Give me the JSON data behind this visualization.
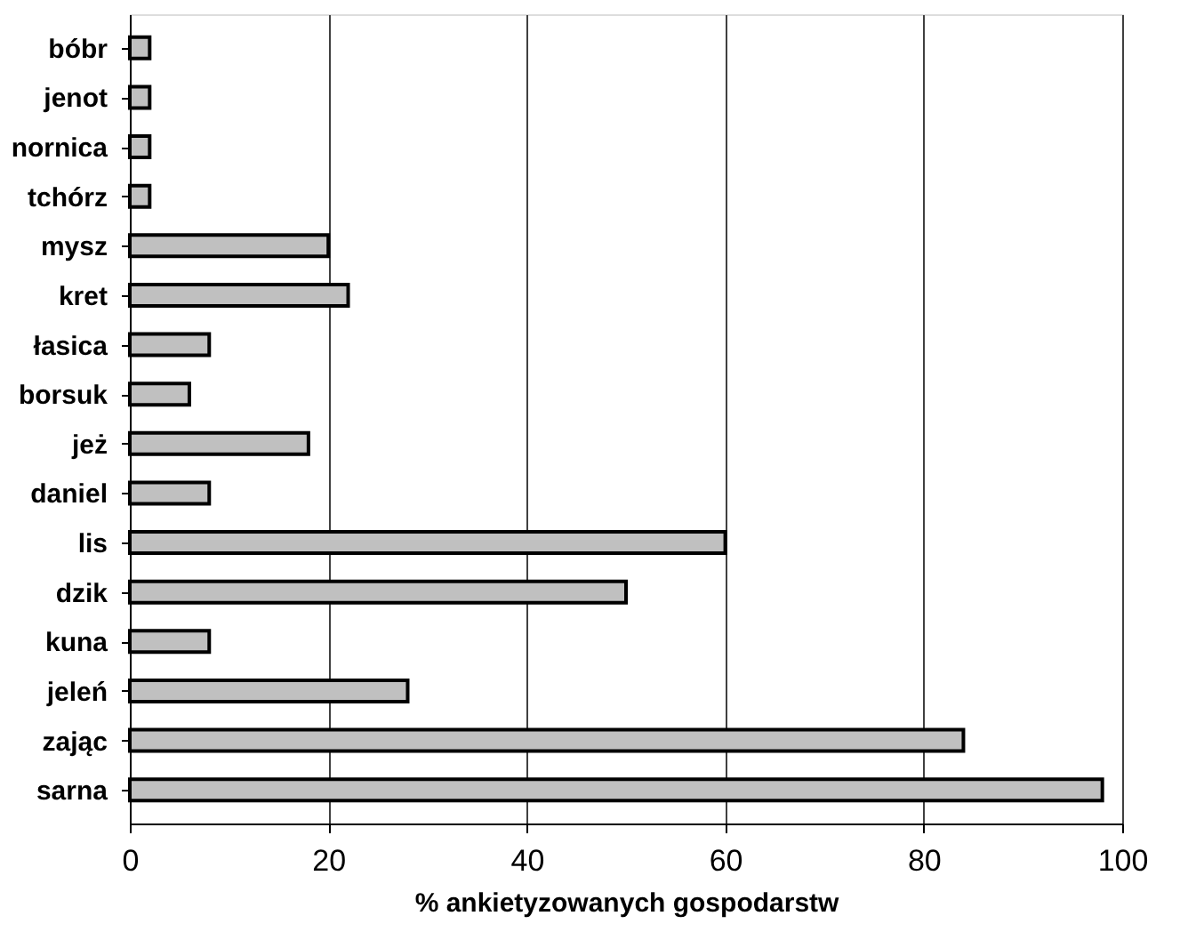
{
  "chart_data": {
    "type": "bar",
    "orientation": "horizontal",
    "xlabel": "% ankietyzowanych gospodarstw",
    "categories": [
      "bóbr",
      "jenot",
      "nornica",
      "tchórz",
      "mysz",
      "kret",
      "łasica",
      "borsuk",
      "jeż",
      "daniel",
      "lis",
      "dzik",
      "kuna",
      "jeleń",
      "zając",
      "sarna"
    ],
    "values": [
      2,
      2,
      2,
      2,
      20,
      22,
      8,
      6,
      18,
      8,
      60,
      50,
      8,
      28,
      84,
      98
    ],
    "color": "#c0c0c0",
    "xlim": [
      0,
      100
    ],
    "xticks": [
      0,
      20,
      40,
      60,
      80,
      100
    ],
    "grid": "x"
  }
}
